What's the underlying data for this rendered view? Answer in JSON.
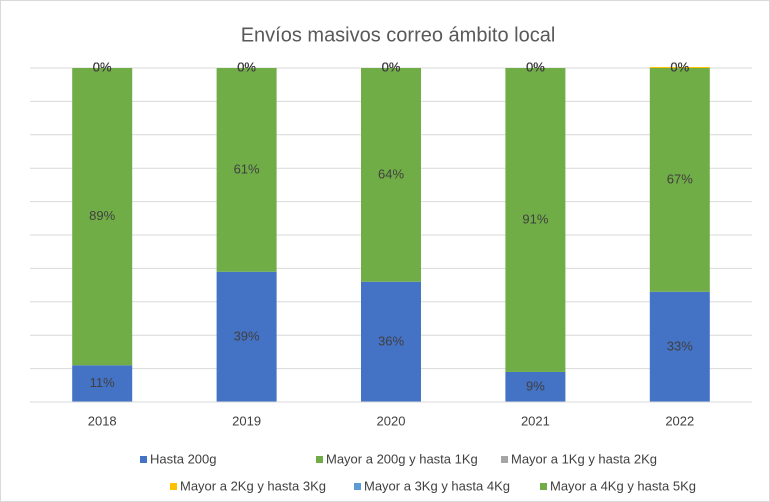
{
  "chart_data": {
    "type": "stacked_bar",
    "title": "Envíos masivos correo ámbito local",
    "categories": [
      "2018",
      "2019",
      "2020",
      "2021",
      "2022"
    ],
    "series": [
      {
        "name": "Hasta 200g",
        "color": "#4472c4",
        "values": [
          11,
          39,
          36,
          9,
          33
        ],
        "value_labels": [
          "11%",
          "39%",
          "36%",
          "9%",
          "33%"
        ]
      },
      {
        "name": "Mayor a 200g y hasta 1Kg",
        "color": "#70ad47",
        "values": [
          89,
          61,
          64,
          91,
          67
        ],
        "value_labels": [
          "89%",
          "61%",
          "64%",
          "91%",
          "67%"
        ]
      },
      {
        "name": "Mayor a 1Kg y hasta 2Kg",
        "color": "#a5a5a5",
        "values": [
          0,
          0,
          0,
          0,
          0
        ],
        "value_labels": [
          "0%",
          "0%",
          "0%",
          "0%",
          "0%"
        ]
      },
      {
        "name": "Mayor a 2Kg y hasta 3Kg",
        "color": "#ffc000",
        "values": [
          0,
          0,
          0,
          0,
          0.3
        ],
        "value_labels": [
          "0%",
          "0%",
          "0%",
          "0%",
          "0%"
        ]
      },
      {
        "name": "Mayor a 3Kg y hasta 4Kg",
        "color": "#5b9bd5",
        "values": [
          0,
          0,
          0,
          0,
          0
        ],
        "value_labels": [
          "0%",
          "0%",
          "0%",
          "0%",
          "0%"
        ]
      },
      {
        "name": "Mayor a 4Kg y hasta 5Kg",
        "color": "#70ad47",
        "values": [
          0,
          0,
          0,
          0,
          0
        ],
        "value_labels": [
          "0%",
          "0%",
          "0%",
          "0%",
          "0%"
        ]
      }
    ],
    "ylim": [
      0,
      100
    ],
    "yticks": [
      0,
      10,
      20,
      30,
      40,
      50,
      60,
      70,
      80,
      90,
      100
    ],
    "grid": true
  }
}
